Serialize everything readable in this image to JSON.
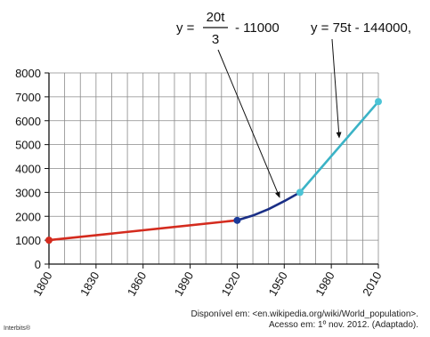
{
  "chart_data": {
    "type": "line",
    "x_ticks": [
      1800,
      1830,
      1860,
      1890,
      1920,
      1950,
      1980,
      2010
    ],
    "y_ticks": [
      0,
      1000,
      2000,
      3000,
      4000,
      5000,
      6000,
      7000,
      8000
    ],
    "xlim": [
      1800,
      2010
    ],
    "ylim": [
      0,
      8000
    ],
    "grid": true,
    "series": [
      {
        "color": "#d42b1e",
        "x": [
          1800,
          1920
        ],
        "y": [
          1000,
          1830
        ]
      },
      {
        "color": "#1a2f86",
        "x": [
          1920,
          1930,
          1940,
          1950,
          1960
        ],
        "y": [
          1830,
          2033,
          2300,
          2633,
          3000
        ]
      },
      {
        "color": "#3bb3c6",
        "x": [
          1960,
          2010
        ],
        "y": [
          3000,
          6800
        ]
      }
    ],
    "points": [
      {
        "x": 1800,
        "y": 1000,
        "color": "#d42b1e"
      },
      {
        "x": 1920,
        "y": 1830,
        "color": "#1a3a9a"
      },
      {
        "x": 1960,
        "y": 3000,
        "color": "#4cc4d6"
      },
      {
        "x": 2010,
        "y": 6800,
        "color": "#4cc4d6"
      }
    ],
    "annotations": {
      "curve": {
        "prefix": "y = ",
        "numerator": "20t",
        "denominator": "3",
        "suffix": "- 11000",
        "arrow_target": {
          "x": 1947,
          "y": 2800
        }
      },
      "line": {
        "text": "y = 75t - 144000,",
        "arrow_target": {
          "x": 1985,
          "y": 5300
        }
      }
    }
  },
  "source": {
    "line1": "Disponível em: <en.wikipedia.org/wiki/World_population>.",
    "line2": "Acesso em: 1º nov. 2012. (Adaptado)."
  },
  "credit": "Interbits®"
}
